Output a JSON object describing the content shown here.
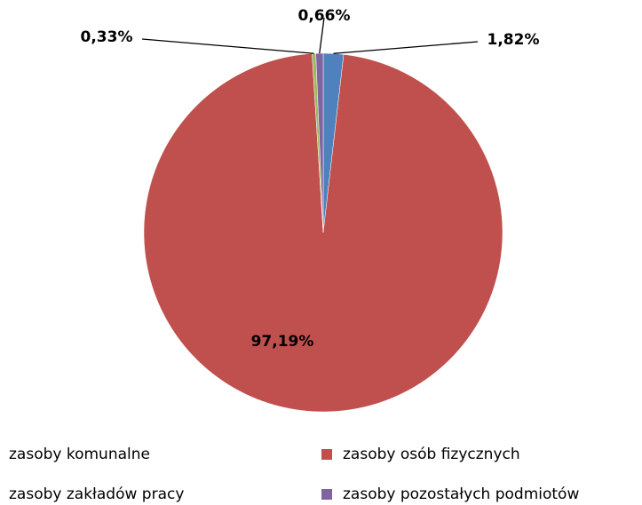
{
  "chart_data": {
    "type": "pie",
    "categories": [
      "zasoby komunalne",
      "zasoby osób fizycznych",
      "zasoby zakładów pracy",
      "zasoby pozostałych podmiotów"
    ],
    "values": [
      1.82,
      97.19,
      0.33,
      0.66
    ],
    "value_labels": [
      "1,82%",
      "97,19%",
      "0,33%",
      "0,66%"
    ],
    "colors": [
      "#4f81bd",
      "#c0504d",
      "#9bbb59",
      "#8064a2"
    ],
    "legend": "bottom"
  }
}
